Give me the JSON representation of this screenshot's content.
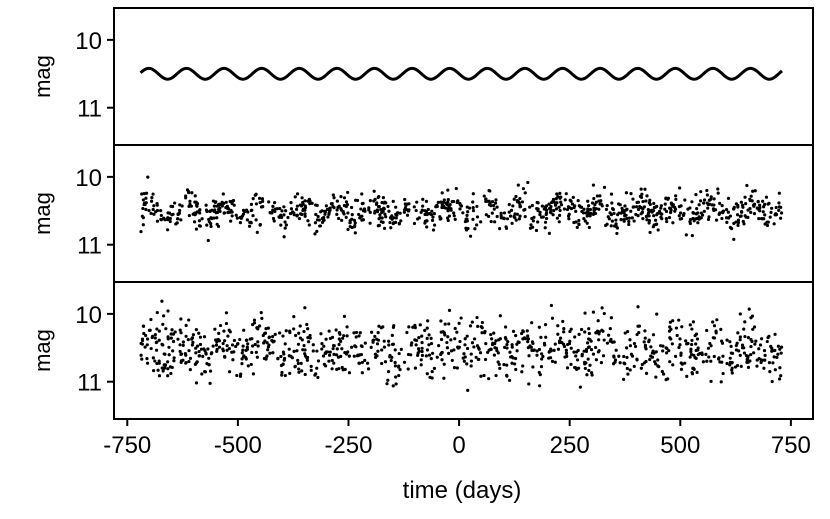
{
  "chart_data": [
    {
      "type": "line",
      "ylabel": "mag",
      "xlim": [
        -780,
        800
      ],
      "ylim_display": [
        9.53,
        11.55
      ],
      "y_inverted": true,
      "y_ticks": [
        10,
        11
      ],
      "y_tick_labels": [
        "10",
        "11"
      ],
      "series": [
        {
          "signal": "sinusoid",
          "x_start": -720,
          "x_end": 730,
          "mean_mag": 10.5,
          "amplitude": 0.08,
          "period_days": 85
        }
      ]
    },
    {
      "type": "scatter",
      "ylabel": "mag",
      "xlim": [
        -780,
        800
      ],
      "ylim_display": [
        9.53,
        11.55
      ],
      "y_inverted": true,
      "y_ticks": [
        10,
        11
      ],
      "y_tick_labels": [
        "10",
        "11"
      ],
      "series": [
        {
          "signal": "sinusoid plus noise",
          "n_points": 1000,
          "x_start": -720,
          "x_end": 730,
          "mean_mag": 10.5,
          "amplitude": 0.08,
          "period_days": 85,
          "noise_sigma": 0.12
        }
      ]
    },
    {
      "type": "scatter",
      "ylabel": "mag",
      "xlim": [
        -780,
        800
      ],
      "ylim_display": [
        9.53,
        11.55
      ],
      "y_inverted": true,
      "y_ticks": [
        10,
        11
      ],
      "y_tick_labels": [
        "10",
        "11"
      ],
      "xlabel": "time (days)",
      "x_ticks": [
        -750,
        -500,
        -250,
        0,
        250,
        500,
        750
      ],
      "x_tick_labels": [
        "-750",
        "-500",
        "-250",
        "0",
        "250",
        "500",
        "750"
      ],
      "series": [
        {
          "signal": "sinusoid plus noise",
          "n_points": 1000,
          "x_start": -720,
          "x_end": 730,
          "mean_mag": 10.5,
          "amplitude": 0.08,
          "period_days": 85,
          "noise_sigma": 0.22
        }
      ]
    }
  ]
}
